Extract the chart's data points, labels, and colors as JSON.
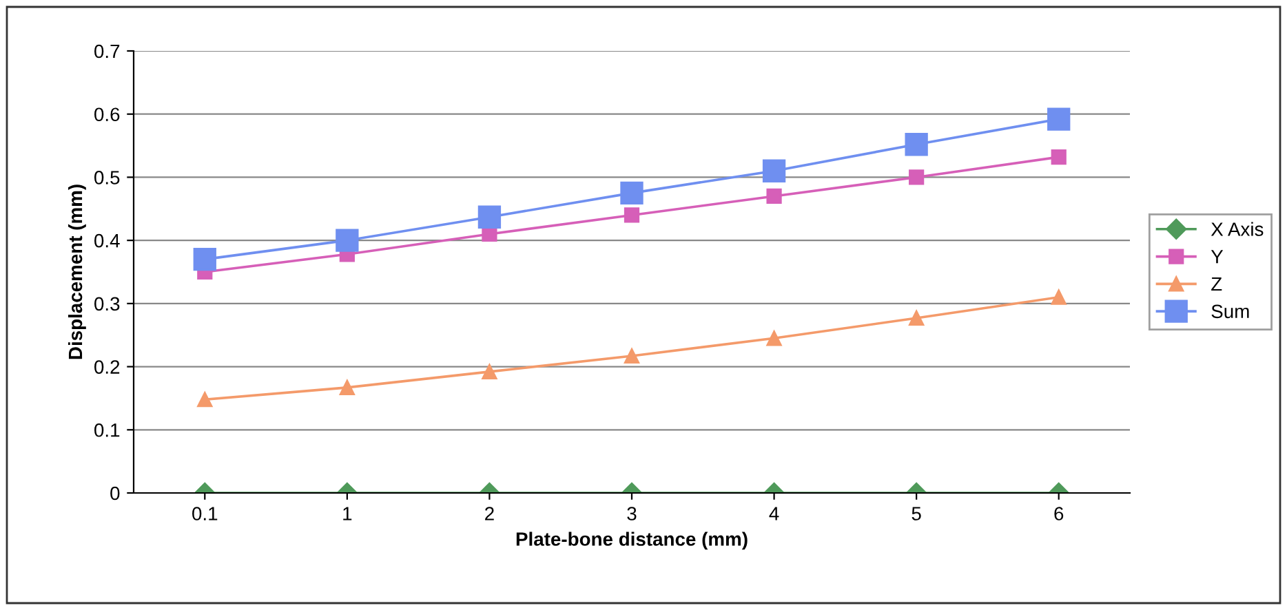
{
  "chart_data": {
    "type": "line",
    "xlabel": "Plate-bone distance (mm)",
    "ylabel": "Displacement (mm)",
    "categories": [
      "0.1",
      "1",
      "2",
      "3",
      "4",
      "5",
      "6"
    ],
    "series": [
      {
        "name": "X Axis",
        "color": "#4f9a5a",
        "marker": "diamond",
        "values": [
          0,
          0,
          0,
          0,
          0,
          0,
          0
        ]
      },
      {
        "name": "Y",
        "color": "#d65fb8",
        "marker": "square",
        "values": [
          0.35,
          0.378,
          0.41,
          0.44,
          0.47,
          0.5,
          0.532
        ]
      },
      {
        "name": "Z",
        "color": "#f49a6a",
        "marker": "triangle",
        "values": [
          0.148,
          0.167,
          0.192,
          0.217,
          0.245,
          0.277,
          0.31
        ]
      },
      {
        "name": "Sum",
        "color": "#6f8ff0",
        "marker": "square",
        "values": [
          0.37,
          0.4,
          0.437,
          0.475,
          0.51,
          0.552,
          0.592
        ]
      }
    ],
    "ylim": [
      0,
      0.7
    ],
    "yticks": [
      0,
      0.1,
      0.2,
      0.3,
      0.4,
      0.5,
      0.6,
      0.7
    ],
    "grid": "y",
    "legend": "right",
    "line_style": "solid"
  }
}
